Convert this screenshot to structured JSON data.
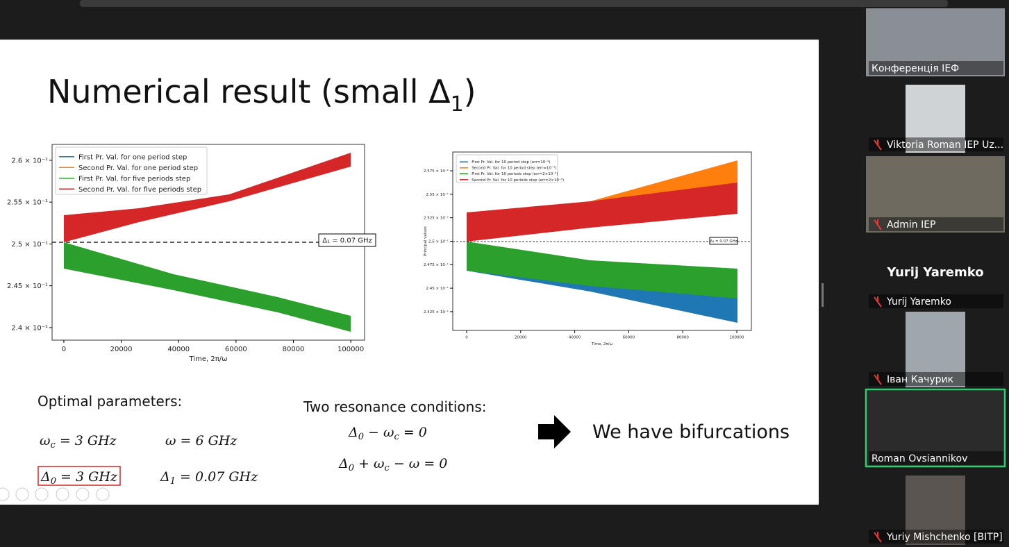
{
  "slide": {
    "title": {
      "text": "Numerical result (small Δ",
      "sub": "1",
      "end": ")"
    },
    "plot_left": {
      "legend": [
        "First Pr. Val. for one period step",
        "Second Pr. Val. for one period step",
        "First Pr. Val. for five periods step",
        "Second Pr. Val. for five periods step"
      ],
      "legend_colors": [
        "#1f77b4",
        "#ff7f0e",
        "#2ca02c",
        "#d62728"
      ],
      "xlabel": "Time, 2π/ω",
      "annotation": "Δ₁ = 0.07 GHz",
      "ylim": [
        0.2385,
        0.2619
      ],
      "xlim": [
        -4100,
        104800
      ],
      "yticks": [
        {
          "value": 0.26,
          "label": "2.6 × 10⁻¹"
        },
        {
          "value": 0.255,
          "label": "2.55 × 10⁻¹"
        },
        {
          "value": 0.25,
          "label": "2.5 × 10⁻¹"
        },
        {
          "value": 0.245,
          "label": "2.45 × 10⁻¹"
        },
        {
          "value": 0.24,
          "label": "2.4 × 10⁻¹"
        }
      ],
      "xticks": [
        0,
        20000,
        40000,
        60000,
        80000,
        100000
      ]
    },
    "plot_right": {
      "legend": [
        "First Pr. Val. for 10 period step (err=10⁻⁴)",
        "Second Pr. Val. for 10 period step (err=10⁻⁴)",
        "First Pr. Val. for 10 periods step (err=2×10⁻⁵)",
        "Second Pr. Val. for 10 periods step (err=2×10⁻⁵)"
      ],
      "legend_colors": [
        "#1f77b4",
        "#ff7f0e",
        "#2ca02c",
        "#d62728"
      ],
      "xlabel": "Time, 2π/ω",
      "ylabel": "Principal values",
      "annotation": "Δ₁ = 0.07 GHz",
      "ylim": [
        0.2405,
        0.2595
      ],
      "xlim": [
        -5140,
        105400
      ],
      "yticks": [
        {
          "value": 0.2575,
          "label": "2.575 × 10⁻¹"
        },
        {
          "value": 0.255,
          "label": "2.55 × 10⁻¹"
        },
        {
          "value": 0.2525,
          "label": "2.525 × 10⁻¹"
        },
        {
          "value": 0.25,
          "label": "2.5 × 10⁻¹"
        },
        {
          "value": 0.2475,
          "label": "2.475 × 10⁻¹"
        },
        {
          "value": 0.245,
          "label": "2.45 × 10⁻¹"
        },
        {
          "value": 0.2425,
          "label": "2.425 × 10⁻¹"
        }
      ],
      "xticks": [
        0,
        20000,
        40000,
        60000,
        80000,
        100000
      ]
    },
    "optimal": {
      "heading": "Optimal parameters:",
      "wc": {
        "sym": "ω",
        "sub": "c",
        "rest": " = 3 GHz"
      },
      "w": {
        "sym": "ω",
        "rest": " = 6 GHz"
      },
      "d0": {
        "sym": "Δ",
        "sub": "0",
        "rest": " = 3 GHz"
      },
      "d1": {
        "sym": "Δ",
        "sub": "1",
        "rest": " = 0.07 GHz"
      }
    },
    "resonance": {
      "heading": "Two resonance conditions:",
      "c1": {
        "a": "Δ",
        "as": "0",
        "b": " − ω",
        "bs": "c",
        "rest": " = 0"
      },
      "c2": {
        "a": "Δ",
        "as": "0",
        "b": " + ω",
        "bs": "c",
        "rest": " − ω = 0"
      }
    },
    "conclusion": "We have bifurcations"
  },
  "participants": [
    {
      "name": "Конференція ІЕФ"
    },
    {
      "name": "Viktoria Roman IEP Uz..."
    },
    {
      "name": "Admin IEP"
    },
    {
      "name": "Yurij Yaremko",
      "display": "Yurij Yaremko"
    },
    {
      "name": "Іван Качурик"
    },
    {
      "name": "Roman Ovsiannikov"
    },
    {
      "name": "Yuriy Mishchenko [BITP]"
    }
  ]
}
